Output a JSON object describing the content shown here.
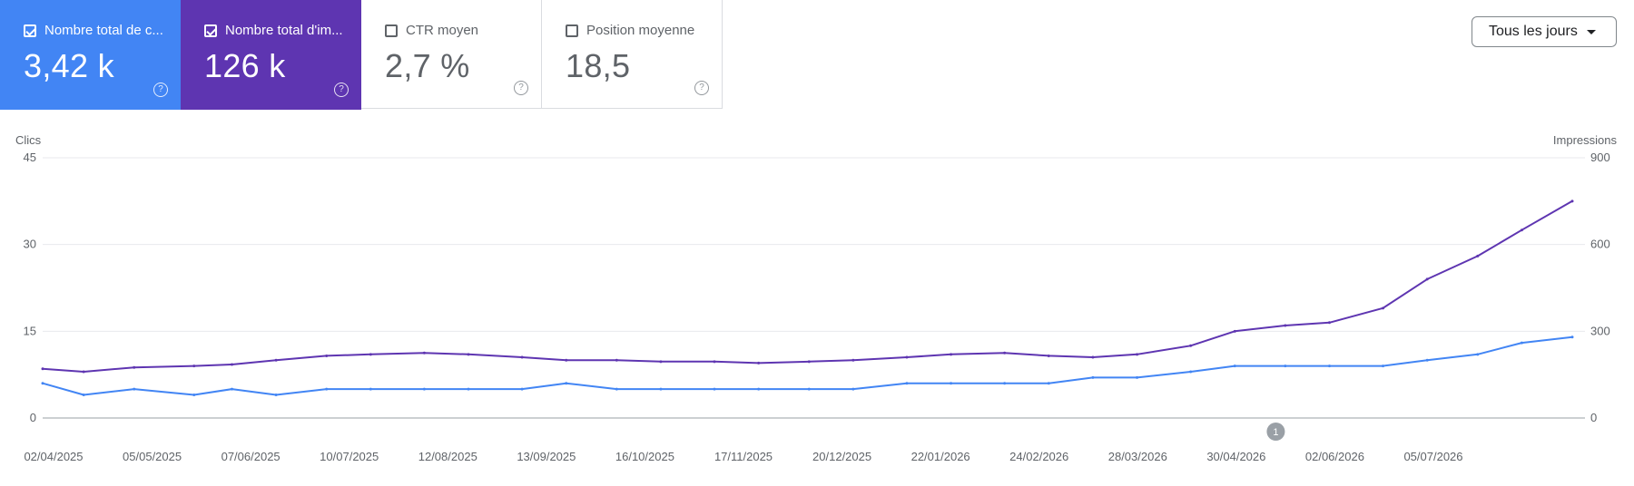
{
  "metrics": [
    {
      "label": "Nombre total de c...",
      "value": "3,42 k",
      "checked": true,
      "color": "#4285f4"
    },
    {
      "label": "Nombre total d'im...",
      "value": "126 k",
      "checked": true,
      "color": "#5e35b1"
    },
    {
      "label": "CTR moyen",
      "value": "2,7 %",
      "checked": false
    },
    {
      "label": "Position moyenne",
      "value": "18,5",
      "checked": false
    }
  ],
  "help_glyph": "?",
  "dropdown": {
    "label": "Tous les jours"
  },
  "annotation": {
    "label": "1",
    "date": "2026-04-28"
  },
  "chart_data": {
    "type": "line",
    "x_start": "2025-04-02",
    "x_end": "2026-07-31",
    "y_left": {
      "label": "Clics",
      "ticks": [
        0,
        15,
        30,
        45
      ],
      "ylim": [
        0,
        45
      ]
    },
    "y_right": {
      "label": "Impressions",
      "ticks": [
        0,
        300,
        600,
        900
      ],
      "ylim": [
        0,
        900
      ]
    },
    "x_ticks": [
      "02/04/2025",
      "05/05/2025",
      "07/06/2025",
      "10/07/2025",
      "12/08/2025",
      "13/09/2025",
      "16/10/2025",
      "17/11/2025",
      "20/12/2025",
      "22/01/2026",
      "24/02/2026",
      "28/03/2026",
      "30/04/2026",
      "02/06/2026",
      "05/07/2026"
    ],
    "grid": true,
    "series": [
      {
        "name": "Clics",
        "axis": "left",
        "color": "#4285f4",
        "points": [
          [
            "2025-04-02",
            6
          ],
          [
            "2025-04-15",
            4
          ],
          [
            "2025-05-01",
            5
          ],
          [
            "2025-05-20",
            4
          ],
          [
            "2025-06-01",
            5
          ],
          [
            "2025-06-15",
            4
          ],
          [
            "2025-07-01",
            5
          ],
          [
            "2025-07-15",
            5
          ],
          [
            "2025-08-01",
            5
          ],
          [
            "2025-08-15",
            5
          ],
          [
            "2025-09-01",
            5
          ],
          [
            "2025-09-15",
            6
          ],
          [
            "2025-10-01",
            5
          ],
          [
            "2025-10-15",
            5
          ],
          [
            "2025-11-01",
            5
          ],
          [
            "2025-11-15",
            5
          ],
          [
            "2025-12-01",
            5
          ],
          [
            "2025-12-15",
            5
          ],
          [
            "2026-01-01",
            6
          ],
          [
            "2026-01-15",
            6
          ],
          [
            "2026-02-01",
            6
          ],
          [
            "2026-02-15",
            6
          ],
          [
            "2026-03-01",
            7
          ],
          [
            "2026-03-15",
            7
          ],
          [
            "2026-04-01",
            8
          ],
          [
            "2026-04-15",
            9
          ],
          [
            "2026-05-01",
            9
          ],
          [
            "2026-05-15",
            9
          ],
          [
            "2026-06-01",
            9
          ],
          [
            "2026-06-15",
            10
          ],
          [
            "2026-07-01",
            11
          ],
          [
            "2026-07-15",
            13
          ],
          [
            "2026-07-31",
            14
          ]
        ]
      },
      {
        "name": "Impressions",
        "axis": "right",
        "color": "#5e35b1",
        "points": [
          [
            "2025-04-02",
            170
          ],
          [
            "2025-04-15",
            160
          ],
          [
            "2025-05-01",
            175
          ],
          [
            "2025-05-20",
            180
          ],
          [
            "2025-06-01",
            185
          ],
          [
            "2025-06-15",
            200
          ],
          [
            "2025-07-01",
            215
          ],
          [
            "2025-07-15",
            220
          ],
          [
            "2025-08-01",
            225
          ],
          [
            "2025-08-15",
            220
          ],
          [
            "2025-09-01",
            210
          ],
          [
            "2025-09-15",
            200
          ],
          [
            "2025-10-01",
            200
          ],
          [
            "2025-10-15",
            195
          ],
          [
            "2025-11-01",
            195
          ],
          [
            "2025-11-15",
            190
          ],
          [
            "2025-12-01",
            195
          ],
          [
            "2025-12-15",
            200
          ],
          [
            "2026-01-01",
            210
          ],
          [
            "2026-01-15",
            220
          ],
          [
            "2026-02-01",
            225
          ],
          [
            "2026-02-15",
            215
          ],
          [
            "2026-03-01",
            210
          ],
          [
            "2026-03-15",
            220
          ],
          [
            "2026-04-01",
            250
          ],
          [
            "2026-04-15",
            300
          ],
          [
            "2026-05-01",
            320
          ],
          [
            "2026-05-15",
            330
          ],
          [
            "2026-06-01",
            380
          ],
          [
            "2026-06-15",
            480
          ],
          [
            "2026-07-01",
            560
          ],
          [
            "2026-07-15",
            650
          ],
          [
            "2026-07-31",
            750
          ]
        ]
      }
    ]
  }
}
